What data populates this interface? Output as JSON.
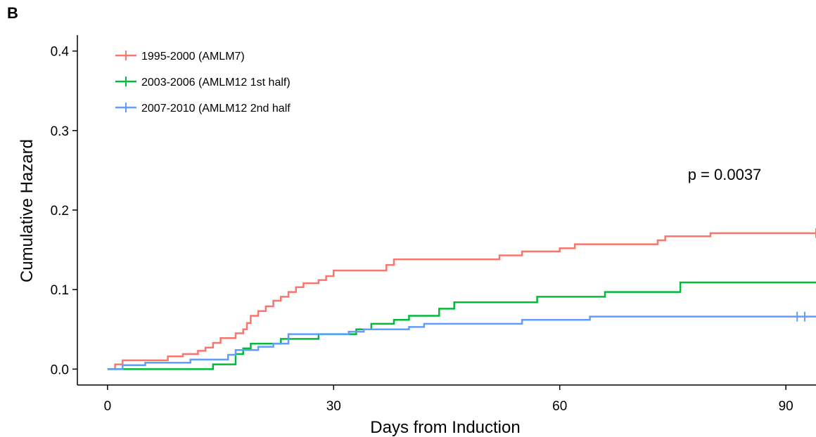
{
  "panel_label": "B",
  "chart_data": {
    "type": "line",
    "step": true,
    "xlabel": "Days from Induction",
    "ylabel": "Cumulative Hazard",
    "xlim": [
      -4,
      94
    ],
    "ylim": [
      -0.02,
      0.42
    ],
    "xticks": [
      0,
      30,
      60,
      90
    ],
    "yticks": [
      0.0,
      0.1,
      0.2,
      0.3,
      0.4
    ],
    "ytick_labels": [
      "0.0",
      "0.1",
      "0.2",
      "0.3",
      "0.4"
    ],
    "grid": false,
    "legend_position": "top-left",
    "annotation": "p = 0.0037",
    "series": [
      {
        "name": "1995-2000 (AMLM7)",
        "color": "#F8766D",
        "points": [
          [
            0,
            0
          ],
          [
            1,
            0.006
          ],
          [
            2,
            0.011
          ],
          [
            8,
            0.016
          ],
          [
            10,
            0.019
          ],
          [
            12,
            0.023
          ],
          [
            13,
            0.027
          ],
          [
            14,
            0.033
          ],
          [
            15,
            0.039
          ],
          [
            17,
            0.045
          ],
          [
            18,
            0.05
          ],
          [
            18.5,
            0.058
          ],
          [
            19,
            0.067
          ],
          [
            20,
            0.073
          ],
          [
            21,
            0.079
          ],
          [
            22,
            0.086
          ],
          [
            23,
            0.091
          ],
          [
            24,
            0.097
          ],
          [
            25,
            0.103
          ],
          [
            26,
            0.108
          ],
          [
            28,
            0.112
          ],
          [
            29,
            0.117
          ],
          [
            30,
            0.124
          ],
          [
            37,
            0.131
          ],
          [
            38,
            0.138
          ],
          [
            52,
            0.143
          ],
          [
            55,
            0.148
          ],
          [
            60,
            0.152
          ],
          [
            62,
            0.157
          ],
          [
            73,
            0.162
          ],
          [
            74,
            0.167
          ],
          [
            80,
            0.171
          ],
          [
            94,
            0.171
          ]
        ],
        "censored_x": [
          94
        ]
      },
      {
        "name": "2003-2006 (AMLM12 1st half)",
        "color": "#00BA38",
        "points": [
          [
            0,
            0
          ],
          [
            14,
            0.006
          ],
          [
            17,
            0.019
          ],
          [
            18,
            0.026
          ],
          [
            19,
            0.032
          ],
          [
            23,
            0.038
          ],
          [
            28,
            0.044
          ],
          [
            33,
            0.05
          ],
          [
            35,
            0.057
          ],
          [
            38,
            0.062
          ],
          [
            40,
            0.067
          ],
          [
            44,
            0.076
          ],
          [
            46,
            0.084
          ],
          [
            57,
            0.091
          ],
          [
            66,
            0.097
          ],
          [
            76,
            0.109
          ],
          [
            94,
            0.109
          ]
        ],
        "censored_x": []
      },
      {
        "name": "2007-2010 (AMLM12 2nd half",
        "color": "#619CFF",
        "points": [
          [
            0,
            0
          ],
          [
            2,
            0.005
          ],
          [
            5,
            0.008
          ],
          [
            11,
            0.012
          ],
          [
            16,
            0.018
          ],
          [
            17,
            0.024
          ],
          [
            20,
            0.028
          ],
          [
            22,
            0.032
          ],
          [
            24,
            0.044
          ],
          [
            32,
            0.047
          ],
          [
            34,
            0.05
          ],
          [
            40,
            0.053
          ],
          [
            42,
            0.057
          ],
          [
            55,
            0.062
          ],
          [
            64,
            0.066
          ],
          [
            94,
            0.066
          ]
        ],
        "censored_x": [
          91.5,
          92.5
        ]
      }
    ]
  }
}
